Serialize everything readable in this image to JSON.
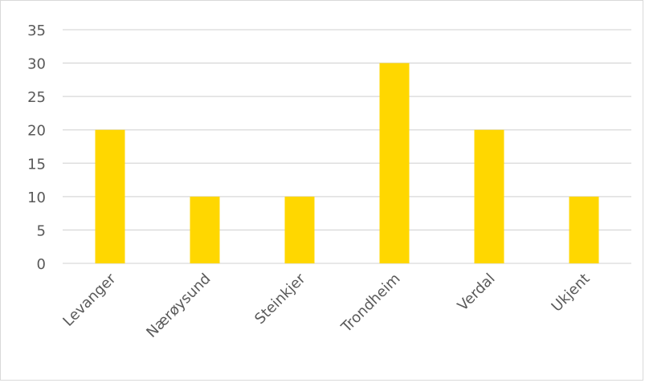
{
  "chart_data": {
    "type": "bar",
    "title": "",
    "xlabel": "",
    "ylabel": "",
    "categories": [
      "Levanger",
      "Nærøysund",
      "Steinkjer",
      "Trondheim",
      "Verdal",
      "Ukjent"
    ],
    "values": [
      20,
      10,
      10,
      30,
      20,
      10
    ],
    "ylim": [
      0,
      35
    ],
    "yticks": [
      0,
      5,
      10,
      15,
      20,
      25,
      30,
      35
    ],
    "grid": true,
    "legend": "none",
    "bar_color": "#FFD700",
    "grid_color": "#d9d9d9",
    "text_color": "#595959"
  }
}
